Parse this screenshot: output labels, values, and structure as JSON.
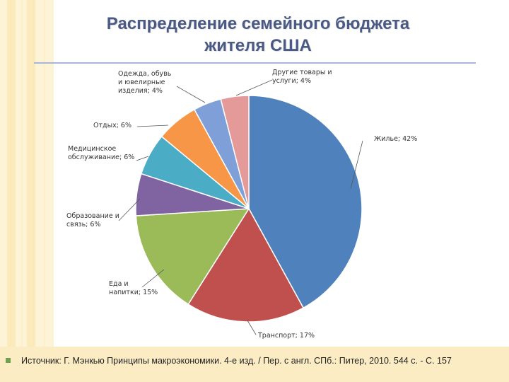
{
  "slide": {
    "title_line1": "Распределение семейного бюджета",
    "title_line2": "жителя США",
    "source": "Источник: Г. Мэнкью Принципы макроэкономики. 4-е изд. / Пер. с англ. СПб.: Питер, 2010. 544 с. - С. 157"
  },
  "chart_data": {
    "type": "pie",
    "title": "",
    "slices": [
      {
        "label": "Жилье; 42%",
        "value": 42,
        "color": "#4f81bd"
      },
      {
        "label": "Транспорт; 17%",
        "value": 17,
        "color": "#c0504d"
      },
      {
        "label": "Еда и напитки; 15%",
        "value": 15,
        "color": "#9bbb59"
      },
      {
        "label": "Образование и связь; 6%",
        "value": 6,
        "color": "#8064a2"
      },
      {
        "label": "Медицинское обслуживание; 6%",
        "value": 6,
        "color": "#4bacc6"
      },
      {
        "label": "Отдых; 6%",
        "value": 6,
        "color": "#f79646"
      },
      {
        "label": "Одежда, обувь и ювелирные изделия; 4%",
        "value": 4,
        "color": "#7f9fd8"
      },
      {
        "label": "Другие товары и услуги; 4%",
        "value": 4,
        "color": "#e59a9a"
      }
    ]
  }
}
